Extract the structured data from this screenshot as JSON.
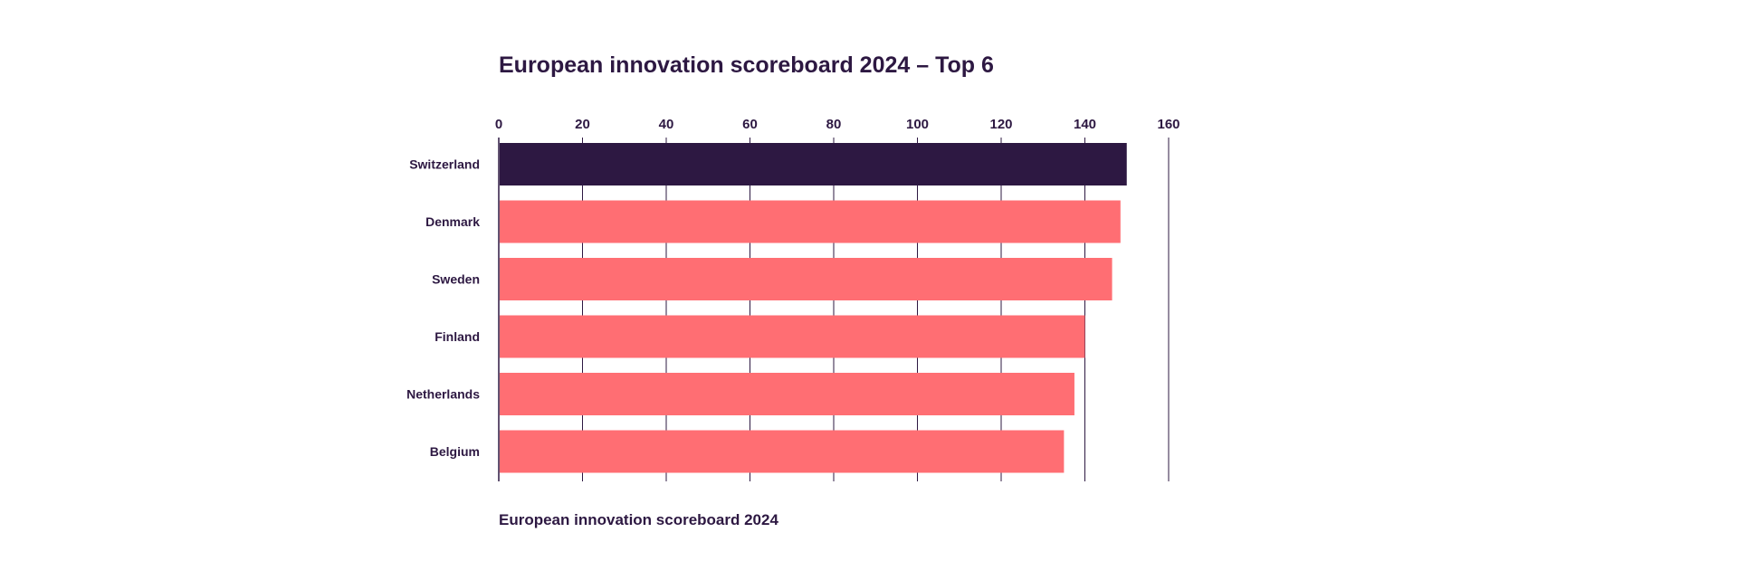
{
  "chart_data": {
    "type": "bar",
    "orientation": "horizontal",
    "title": "European innovation scoreboard 2024 – Top 6",
    "source": "European innovation scoreboard 2024",
    "categories": [
      "Switzerland",
      "Denmark",
      "Sweden",
      "Finland",
      "Netherlands",
      "Belgium"
    ],
    "values": [
      150,
      148.5,
      146.5,
      140,
      137.5,
      135
    ],
    "highlight_index": 0,
    "xlim": [
      0,
      160
    ],
    "x_ticks": [
      0,
      20,
      40,
      60,
      80,
      100,
      120,
      140,
      160
    ],
    "x_tick_labels": [
      "0",
      "20",
      "40",
      "60",
      "80",
      "100",
      "120",
      "140",
      "160"
    ],
    "axis_position": "top",
    "grid": true,
    "legend": "none",
    "colors": {
      "highlight": "#2d1842",
      "bar": "#ff6e73",
      "grid": "#2d1842",
      "text": "#2d1842"
    }
  }
}
